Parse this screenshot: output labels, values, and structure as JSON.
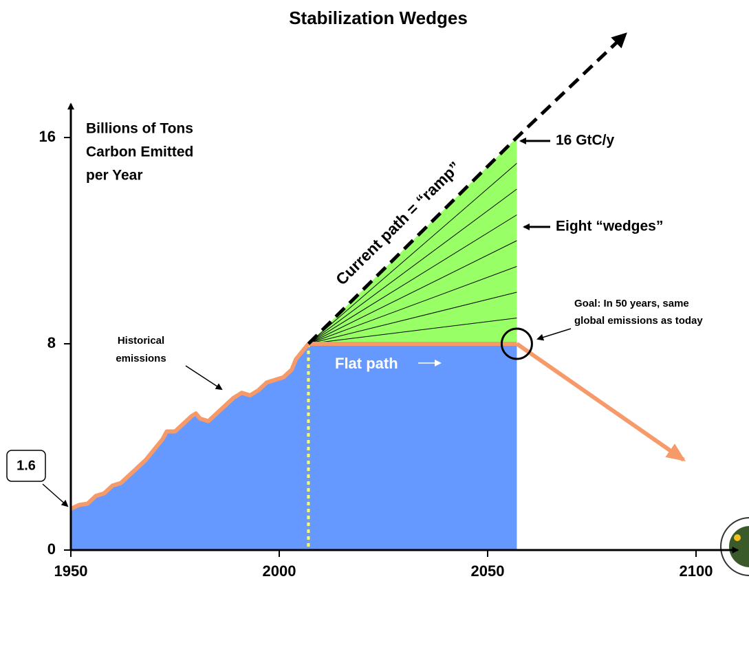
{
  "chart_data": {
    "type": "area",
    "title": "Stabilization Wedges",
    "y_label": [
      "Billions of Tons",
      "Carbon Emitted",
      "per Year"
    ],
    "xlim": [
      1950,
      2110
    ],
    "ylim": [
      0,
      17.3
    ],
    "xticks": [
      1950,
      2000,
      2050,
      2100
    ],
    "yticks": [
      0,
      8,
      16
    ],
    "historical": {
      "color": "#f79a6a",
      "fill": "#6699ff",
      "x": [
        1950,
        1952,
        1954,
        1956,
        1958,
        1960,
        1962,
        1964,
        1966,
        1968,
        1970,
        1972,
        1973,
        1975,
        1977,
        1979,
        1980,
        1981,
        1983,
        1985,
        1987,
        1989,
        1991,
        1993,
        1995,
        1997,
        1999,
        2001,
        2003,
        2004,
        2005,
        2007
      ],
      "values": [
        1.6,
        1.75,
        1.8,
        2.1,
        2.2,
        2.5,
        2.6,
        2.9,
        3.2,
        3.5,
        3.9,
        4.3,
        4.6,
        4.6,
        4.9,
        5.2,
        5.3,
        5.1,
        5.0,
        5.3,
        5.6,
        5.9,
        6.1,
        6.0,
        6.2,
        6.5,
        6.6,
        6.7,
        7.0,
        7.4,
        7.6,
        8.0
      ]
    },
    "ramp": {
      "color": "#000000",
      "fill": "#99ff66",
      "x": [
        2007,
        2057,
        2083
      ],
      "values": [
        8,
        16,
        20
      ]
    },
    "flat": {
      "color": "#f79a6a",
      "fill": "#6699ff",
      "x": [
        2007,
        2057
      ],
      "values": [
        8,
        8
      ]
    },
    "decline": {
      "color": "#f79a6a",
      "x": [
        2057,
        2097
      ],
      "values": [
        8,
        3.5
      ]
    },
    "wedges": {
      "x": 2057,
      "values": [
        9,
        10,
        11,
        12,
        13,
        14,
        15
      ]
    },
    "annotations": {
      "start_value": "1.6",
      "historical": [
        "Historical",
        "emissions"
      ],
      "ramp": "Current path = “ramp”",
      "flat": "Flat path",
      "top": "16 GtC/y",
      "wedges": "Eight “wedges”",
      "goal": [
        "Goal: In 50 years, same",
        "global emissions as today"
      ]
    }
  }
}
